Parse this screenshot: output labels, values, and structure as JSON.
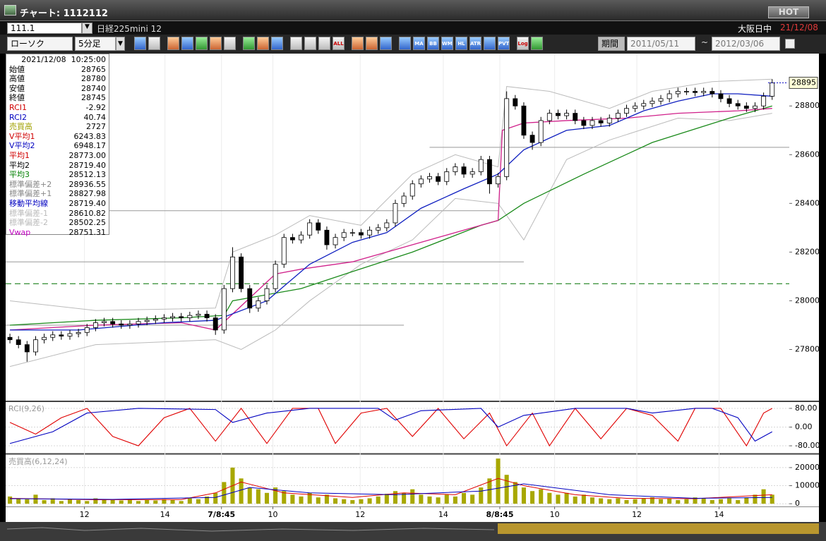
{
  "window": {
    "title": "チャート: 1112112",
    "hot": "HOT"
  },
  "toolbar": {
    "code": "111.1",
    "instrument": "日経225mini 12",
    "session": "大阪日中",
    "date": "21/12/08",
    "chart_type": "ローソク",
    "interval": "5分足",
    "period": "期間",
    "from": "2011/05/11",
    "tilde": "~",
    "to": "2012/03/06",
    "icons": [
      "ALL",
      "MA",
      "BB",
      "WMA",
      "HL",
      "ATR",
      "PVT",
      "Log"
    ]
  },
  "info_panel": {
    "datetime": "2021/12/08  10:25:00",
    "rows": [
      {
        "label": "始値",
        "value": "28765",
        "color": "#000000"
      },
      {
        "label": "高値",
        "value": "28780",
        "color": "#000000"
      },
      {
        "label": "安値",
        "value": "28740",
        "color": "#000000"
      },
      {
        "label": "終値",
        "value": "28745",
        "color": "#000000"
      },
      {
        "label": "RCI1",
        "value": "-2.92",
        "color": "#d00000"
      },
      {
        "label": "RCI2",
        "value": "40.74",
        "color": "#0000c0"
      },
      {
        "label": "売買高",
        "value": "2727",
        "color": "#a0a000"
      },
      {
        "label": "V平均1",
        "value": "6243.83",
        "color": "#d00000"
      },
      {
        "label": "V平均2",
        "value": "6948.17",
        "color": "#0000c0"
      },
      {
        "label": "平均1",
        "value": "28773.00",
        "color": "#d00000"
      },
      {
        "label": "平均2",
        "value": "28719.40",
        "color": "#000000"
      },
      {
        "label": "平均3",
        "value": "28512.13",
        "color": "#008000"
      },
      {
        "label": "標準偏差+2",
        "value": "28936.55",
        "color": "#888888"
      },
      {
        "label": "標準偏差+1",
        "value": "28827.98",
        "color": "#888888"
      },
      {
        "label": "移動平均線",
        "value": "28719.40",
        "color": "#0000c0"
      },
      {
        "label": "標準偏差-1",
        "value": "28610.82",
        "color": "#bbbbbb"
      },
      {
        "label": "標準偏差-2",
        "value": "28502.25",
        "color": "#bbbbbb"
      },
      {
        "label": "Vwap",
        "value": "28751.31",
        "color": "#c000c0"
      }
    ]
  },
  "chart_data": [
    {
      "type": "candlestick",
      "open": [
        27850,
        27840,
        27820,
        27790,
        27840,
        27850,
        27860,
        27855,
        27865,
        27870,
        27890,
        27910,
        27915,
        27905,
        27900,
        27905,
        27915,
        27920,
        27925,
        27930,
        27935,
        27930,
        27940,
        27945,
        27930,
        27880,
        28050,
        28180,
        28050,
        27970,
        28000,
        28050,
        28150,
        28260,
        28250,
        28270,
        28320,
        28290,
        28230,
        28260,
        28280,
        28280,
        28270,
        28290,
        28300,
        28320,
        28400,
        28430,
        28480,
        28500,
        28510,
        28490,
        28530,
        28550,
        28520,
        28530,
        28580,
        28480,
        28510,
        28830,
        28800,
        28680,
        28650,
        28740,
        28770,
        28760,
        28770,
        28740,
        28720,
        28740,
        28730,
        28750,
        28770,
        28790,
        28800,
        28810,
        28820,
        28830,
        28850,
        28860,
        28860,
        28855,
        28860,
        28850,
        28830,
        28810,
        28800,
        28790,
        28800,
        28840
      ],
      "high": [
        27865,
        27855,
        27835,
        27855,
        27865,
        27875,
        27875,
        27880,
        27885,
        27905,
        27925,
        27930,
        27930,
        27920,
        27920,
        27930,
        27935,
        27940,
        27945,
        27950,
        27950,
        27955,
        27960,
        27960,
        27945,
        28065,
        28220,
        28195,
        28065,
        28015,
        28065,
        28165,
        28275,
        28275,
        28285,
        28335,
        28335,
        28305,
        28275,
        28295,
        28295,
        28295,
        28305,
        28315,
        28335,
        28415,
        28445,
        28495,
        28515,
        28525,
        28525,
        28545,
        28565,
        28565,
        28545,
        28595,
        28595,
        28525,
        28860,
        28845,
        28815,
        28695,
        28755,
        28785,
        28785,
        28785,
        28785,
        28755,
        28755,
        28755,
        28765,
        28785,
        28805,
        28815,
        28825,
        28835,
        28845,
        28865,
        28875,
        28875,
        28875,
        28875,
        28875,
        28865,
        28845,
        28825,
        28815,
        28815,
        28855,
        28910
      ],
      "low": [
        27825,
        27805,
        27750,
        27775,
        27825,
        27835,
        27840,
        27840,
        27850,
        27855,
        27875,
        27895,
        27890,
        27885,
        27885,
        27890,
        27900,
        27905,
        27910,
        27915,
        27915,
        27915,
        27925,
        27915,
        27860,
        27865,
        28035,
        28035,
        27950,
        27955,
        27985,
        28035,
        28135,
        28235,
        28235,
        28255,
        28275,
        28210,
        28215,
        28245,
        28265,
        28255,
        28255,
        28275,
        28285,
        28305,
        28385,
        28415,
        28465,
        28485,
        28475,
        28475,
        28515,
        28505,
        28505,
        28515,
        28440,
        28465,
        28495,
        28785,
        28665,
        28620,
        28635,
        28725,
        28745,
        28745,
        28725,
        28705,
        28705,
        28715,
        28715,
        28735,
        28755,
        28775,
        28785,
        28795,
        28805,
        28815,
        28835,
        28845,
        28840,
        28840,
        28835,
        28815,
        28795,
        28785,
        28775,
        28775,
        28785,
        28825
      ],
      "close": [
        27840,
        27820,
        27790,
        27840,
        27850,
        27860,
        27855,
        27865,
        27870,
        27890,
        27910,
        27915,
        27905,
        27900,
        27905,
        27915,
        27920,
        27925,
        27930,
        27935,
        27930,
        27940,
        27945,
        27930,
        27880,
        28050,
        28180,
        28050,
        27970,
        28000,
        28050,
        28150,
        28260,
        28250,
        28270,
        28320,
        28290,
        28230,
        28260,
        28280,
        28280,
        28270,
        28290,
        28300,
        28320,
        28400,
        28430,
        28480,
        28500,
        28510,
        28490,
        28530,
        28550,
        28520,
        28530,
        28580,
        28480,
        28510,
        28830,
        28800,
        28680,
        28650,
        28740,
        28770,
        28760,
        28770,
        28740,
        28720,
        28740,
        28730,
        28750,
        28770,
        28790,
        28800,
        28810,
        28820,
        28830,
        28850,
        28860,
        28860,
        28855,
        28860,
        28850,
        28830,
        28810,
        28800,
        28790,
        28800,
        28840,
        28895
      ],
      "up_color": "#ffffff",
      "down_color": "#000000",
      "xlim": [
        -0.5,
        91
      ],
      "xticks": [
        {
          "value": 8.7,
          "label": "12"
        },
        {
          "value": 18.1,
          "label": "14"
        },
        {
          "value": 24.7,
          "label": "7/8:45"
        },
        {
          "value": 30.7,
          "label": "10"
        },
        {
          "value": 40.9,
          "label": "12"
        },
        {
          "value": 50.6,
          "label": "14"
        },
        {
          "value": 57.2,
          "label": "8/8:45"
        },
        {
          "value": 63.6,
          "label": "10"
        },
        {
          "value": 73.2,
          "label": "12"
        },
        {
          "value": 82.8,
          "label": "14"
        }
      ],
      "ylim": [
        27590,
        29015
      ],
      "yticks": [
        27800,
        28000,
        28200,
        28400,
        28600,
        28800
      ],
      "grid": false,
      "last_price": 28895,
      "lines": [
        {
          "color": "#bbbbbb",
          "x": [
            0,
            10,
            24,
            26,
            31,
            35,
            41,
            47,
            52,
            57,
            58,
            63,
            70,
            75,
            82,
            89
          ],
          "values": [
            28000,
            27960,
            27970,
            28200,
            28270,
            28350,
            28310,
            28520,
            28600,
            28550,
            28880,
            28860,
            28790,
            28860,
            28900,
            28910
          ]
        },
        {
          "color": "#bbbbbb",
          "x": [
            0,
            10,
            24,
            27,
            31,
            35,
            41,
            47,
            52,
            57,
            60,
            65,
            70,
            78,
            84,
            89
          ],
          "values": [
            27730,
            27820,
            27840,
            27800,
            27880,
            28000,
            28150,
            28250,
            28420,
            28400,
            28250,
            28580,
            28660,
            28750,
            28740,
            28770
          ]
        },
        {
          "color": "#1a8a1a",
          "x": [
            0,
            10,
            20,
            25,
            26,
            34,
            40,
            47,
            55,
            57,
            60,
            67,
            75,
            84,
            89
          ],
          "values": [
            27900,
            27920,
            27930,
            27940,
            28000,
            28050,
            28120,
            28200,
            28310,
            28330,
            28400,
            28520,
            28650,
            28750,
            28800
          ]
        },
        {
          "color": "#d0208a",
          "x": [
            0,
            10,
            20,
            24,
            31,
            34,
            40,
            50,
            57,
            57.5,
            60,
            65,
            72,
            78,
            85,
            89
          ],
          "values": [
            27880,
            27900,
            27910,
            27880,
            28110,
            28130,
            28160,
            28260,
            28330,
            28700,
            28730,
            28740,
            28750,
            28770,
            28780,
            28790
          ]
        },
        {
          "color": "#1020c0",
          "x": [
            0,
            8,
            18,
            24,
            30,
            35,
            40,
            44,
            48,
            53,
            57,
            60,
            65,
            70,
            74,
            78,
            82,
            85,
            89
          ],
          "values": [
            27880,
            27880,
            27910,
            27920,
            28000,
            28150,
            28240,
            28280,
            28380,
            28460,
            28520,
            28620,
            28700,
            28720,
            28780,
            28820,
            28850,
            28850,
            28840
          ]
        }
      ],
      "hlines": [
        {
          "value": 28630,
          "x": [
            49,
            91
          ]
        },
        {
          "value": 28370,
          "x": [
            -0.5,
            57
          ]
        },
        {
          "value": 28160,
          "x": [
            -0.5,
            60
          ]
        },
        {
          "value": 27900,
          "x": [
            -0.5,
            46
          ]
        }
      ],
      "dashed_level": {
        "value": 28070,
        "color": "#2e8b2e"
      }
    },
    {
      "type": "line",
      "title": "RCI(9,26)",
      "xlim": [
        -0.5,
        91
      ],
      "ylim": [
        -110,
        107
      ],
      "yticks": [
        {
          "value": 80,
          "label": "80.00"
        },
        {
          "value": 0,
          "label": "0.00"
        },
        {
          "value": -80,
          "label": "-80.00"
        }
      ],
      "grid": true,
      "series": [
        {
          "color": "#e00000",
          "x": [
            0,
            3,
            6,
            9,
            12,
            15,
            18,
            21,
            24,
            27,
            30,
            33,
            36,
            38,
            41,
            44,
            47,
            50,
            53,
            56,
            58,
            61,
            63,
            66,
            69,
            72,
            75,
            78,
            80,
            83,
            86,
            88,
            89
          ],
          "values": [
            20,
            -30,
            40,
            80,
            -40,
            -80,
            40,
            80,
            -60,
            80,
            -70,
            80,
            80,
            -70,
            60,
            80,
            -40,
            80,
            -50,
            60,
            -80,
            60,
            -80,
            80,
            -50,
            80,
            50,
            -60,
            80,
            80,
            -80,
            60,
            80
          ]
        },
        {
          "color": "#0000c0",
          "x": [
            0,
            5,
            9,
            15,
            24,
            26,
            30,
            35,
            43,
            45,
            48,
            55,
            57,
            60,
            66,
            72,
            75,
            80,
            82,
            85,
            87,
            89
          ],
          "values": [
            -70,
            -20,
            60,
            80,
            75,
            20,
            60,
            80,
            80,
            30,
            70,
            80,
            0,
            50,
            80,
            80,
            60,
            80,
            80,
            40,
            -60,
            -20
          ]
        }
      ]
    },
    {
      "type": "bar",
      "title": "売買高(6,12,24)",
      "xlim": [
        -0.5,
        91
      ],
      "ylim": [
        -1500,
        27000
      ],
      "yticks": [
        0,
        10000,
        20000
      ],
      "grid": true,
      "color": "#a8a800",
      "values": [
        4000,
        3000,
        2500,
        5000,
        2000,
        3000,
        1500,
        2500,
        2000,
        1500,
        3000,
        2500,
        2000,
        1800,
        2200,
        1500,
        2000,
        1800,
        2500,
        2000,
        1500,
        3000,
        2500,
        4000,
        6000,
        12000,
        20000,
        14000,
        9000,
        8000,
        6000,
        9000,
        7000,
        5000,
        4000,
        6000,
        3500,
        5000,
        3000,
        2500,
        2000,
        2500,
        3000,
        4000,
        5500,
        7000,
        6000,
        8000,
        5000,
        4000,
        3500,
        5000,
        4000,
        6000,
        5000,
        9000,
        14000,
        25000,
        16000,
        12000,
        9000,
        7000,
        8000,
        6000,
        5000,
        6000,
        4000,
        5000,
        3500,
        3000,
        2500,
        3000,
        2000,
        2500,
        3000,
        3500,
        2500,
        3000,
        2000,
        2500,
        3500,
        3000,
        2000,
        2500,
        3000,
        2000,
        3500,
        5000,
        8000,
        5000
      ],
      "series": [
        {
          "color": "#e00000",
          "x": [
            0,
            10,
            20,
            24,
            27,
            32,
            40,
            46,
            52,
            57,
            60,
            66,
            72,
            80,
            89
          ],
          "values": [
            3000,
            2200,
            2300,
            6000,
            12000,
            6000,
            3500,
            6000,
            5000,
            14000,
            10000,
            5000,
            3000,
            2800,
            5000
          ]
        },
        {
          "color": "#0000c0",
          "x": [
            0,
            12,
            24,
            28,
            35,
            45,
            55,
            60,
            70,
            80,
            89
          ],
          "values": [
            2800,
            2400,
            3500,
            9000,
            6000,
            5000,
            7000,
            11000,
            5000,
            3000,
            3500
          ]
        }
      ]
    }
  ]
}
